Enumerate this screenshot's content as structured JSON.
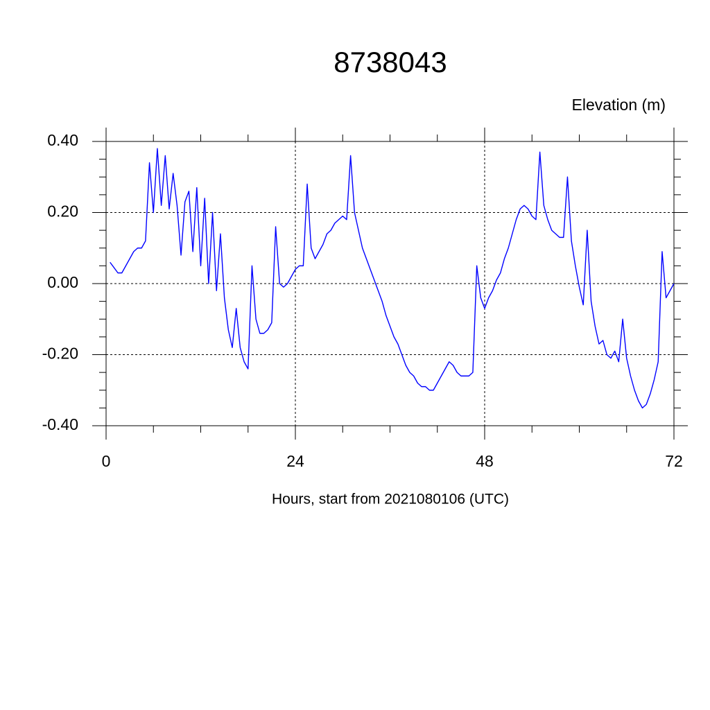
{
  "chart_data": {
    "type": "line",
    "title": "8738043",
    "subtitle": "Elevation (m)",
    "x_label": "Hours, start from 2021080106 (UTC)",
    "x": [
      0.5,
      1.0,
      1.5,
      2.0,
      2.5,
      3.0,
      3.5,
      4.0,
      4.5,
      5.0,
      5.5,
      6.0,
      6.5,
      7.0,
      7.5,
      8.0,
      8.5,
      9.0,
      9.5,
      10.0,
      10.5,
      11.0,
      11.5,
      12.0,
      12.5,
      13.0,
      13.5,
      14.0,
      14.5,
      15.0,
      15.5,
      16.0,
      16.5,
      17.0,
      17.5,
      18.0,
      18.5,
      19.0,
      19.5,
      20.0,
      20.5,
      21.0,
      21.5,
      22.0,
      22.5,
      23.0,
      23.5,
      24.0,
      24.5,
      25.0,
      25.5,
      26.0,
      26.5,
      27.0,
      27.5,
      28.0,
      28.5,
      29.0,
      29.5,
      30.0,
      30.5,
      31.0,
      31.5,
      32.0,
      32.5,
      33.0,
      33.5,
      34.0,
      34.5,
      35.0,
      35.5,
      36.0,
      36.5,
      37.0,
      37.5,
      38.0,
      38.5,
      39.0,
      39.5,
      40.0,
      40.5,
      41.0,
      41.5,
      42.0,
      42.5,
      43.0,
      43.5,
      44.0,
      44.5,
      45.0,
      45.5,
      46.0,
      46.5,
      47.0,
      47.5,
      48.0,
      48.5,
      49.0,
      49.5,
      50.0,
      50.5,
      51.0,
      51.5,
      52.0,
      52.5,
      53.0,
      53.5,
      54.0,
      54.5,
      55.0,
      55.5,
      56.0,
      56.5,
      57.0,
      57.5,
      58.0,
      58.5,
      59.0,
      59.5,
      60.0,
      60.5,
      61.0,
      61.5,
      62.0,
      62.5,
      63.0,
      63.5,
      64.0,
      64.5,
      65.0,
      65.5,
      66.0,
      66.5,
      67.0,
      67.5,
      68.0,
      68.5,
      69.0,
      69.5,
      70.0,
      70.5,
      71.0,
      71.5,
      72.0
    ],
    "series": [
      {
        "name": "Elevation",
        "color": "#0000ff",
        "values": [
          0.06,
          0.045,
          0.03,
          0.03,
          0.05,
          0.07,
          0.09,
          0.1,
          0.1,
          0.12,
          0.34,
          0.2,
          0.38,
          0.22,
          0.36,
          0.21,
          0.31,
          0.22,
          0.08,
          0.23,
          0.26,
          0.09,
          0.27,
          0.05,
          0.24,
          0.0,
          0.2,
          -0.02,
          0.14,
          -0.04,
          -0.13,
          -0.18,
          -0.07,
          -0.18,
          -0.22,
          -0.24,
          0.05,
          -0.1,
          -0.14,
          -0.14,
          -0.13,
          -0.11,
          0.16,
          0.0,
          -0.01,
          0.0,
          0.02,
          0.04,
          0.05,
          0.05,
          0.28,
          0.1,
          0.07,
          0.09,
          0.11,
          0.14,
          0.15,
          0.17,
          0.18,
          0.19,
          0.18,
          0.36,
          0.2,
          0.15,
          0.1,
          0.07,
          0.04,
          0.01,
          -0.02,
          -0.05,
          -0.09,
          -0.12,
          -0.15,
          -0.17,
          -0.2,
          -0.23,
          -0.25,
          -0.26,
          -0.28,
          -0.29,
          -0.29,
          -0.3,
          -0.3,
          -0.28,
          -0.26,
          -0.24,
          -0.22,
          -0.23,
          -0.25,
          -0.26,
          -0.26,
          -0.26,
          -0.25,
          0.05,
          -0.04,
          -0.07,
          -0.04,
          -0.02,
          0.01,
          0.03,
          0.07,
          0.1,
          0.14,
          0.18,
          0.21,
          0.22,
          0.21,
          0.19,
          0.18,
          0.37,
          0.22,
          0.18,
          0.15,
          0.14,
          0.13,
          0.13,
          0.3,
          0.12,
          0.05,
          -0.01,
          -0.06,
          0.15,
          -0.05,
          -0.12,
          -0.17,
          -0.16,
          -0.2,
          -0.21,
          -0.19,
          -0.22,
          -0.1,
          -0.21,
          -0.26,
          -0.3,
          -0.33,
          -0.35,
          -0.34,
          -0.31,
          -0.27,
          -0.22,
          0.09,
          -0.04,
          -0.02,
          0.0
        ]
      }
    ],
    "xlim": [
      0,
      72
    ],
    "xticks": [
      0,
      24,
      48,
      72
    ],
    "ylim": [
      -0.4,
      0.4
    ],
    "yticks": [
      {
        "value": -0.4,
        "label": "-0.40"
      },
      {
        "value": -0.2,
        "label": "-0.20"
      },
      {
        "value": 0,
        "label": "0.00"
      },
      {
        "value": 0.2,
        "label": "0.20"
      },
      {
        "value": 0.4,
        "label": "0.40"
      }
    ],
    "grid": true
  }
}
